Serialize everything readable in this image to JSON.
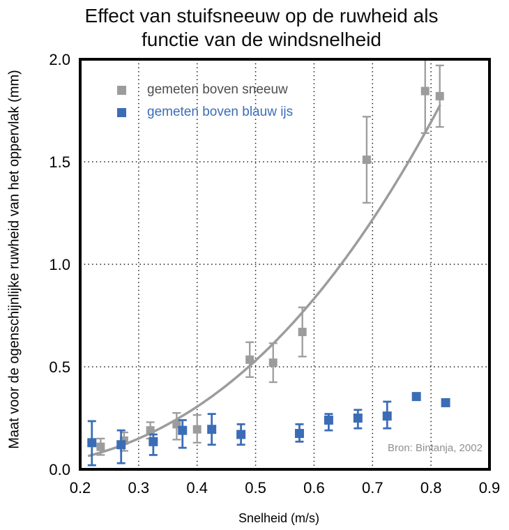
{
  "chart_data": {
    "type": "scatter",
    "title": "Effect van stuifsneeuw op de ruwheid als\nfunctie van de windsnelheid",
    "xlabel": "Snelheid (m/s)",
    "ylabel": "Maat voor de ogenschijnlijke  ruwheid van het oppervlak (mm)",
    "annotation": "Bron: Bintanja, 2002",
    "xlim": [
      0.2,
      0.9
    ],
    "ylim": [
      0.0,
      2.0
    ],
    "xticks": [
      "0.2",
      "0.3",
      "0.4",
      "0.5",
      "0.6",
      "0.7",
      "0.8",
      "0.9"
    ],
    "yticks": [
      "0.0",
      "0.5",
      "1.0",
      "1.5",
      "2.0"
    ],
    "xgrid": [
      0.3,
      0.4,
      0.5,
      0.6,
      0.7,
      0.8
    ],
    "ygrid": [
      0.5,
      1.0,
      1.5
    ],
    "grid_style": "dotted",
    "legend_position": "top-left-inside",
    "colors": {
      "snow": "#9c9c9c",
      "ice": "#3b6db6",
      "legend_snow_text": "#4d4d4d",
      "curve": "#9c9c9c",
      "annotation": "#8f8f8f",
      "frame": "#000000"
    },
    "fit": {
      "type": "power",
      "a": 2.94,
      "b": 2.47,
      "x_start": 0.215,
      "x_end": 0.817,
      "color": "#9c9c9c",
      "note": "y = a * x^b, gray fitted curve through snow data"
    },
    "series": [
      {
        "name": "gemeten boven sneeuw",
        "id": "snow",
        "color": "#9c9c9c",
        "marker": "square",
        "marker_size": 12,
        "bar_width": 2.3,
        "points_format": [
          "x (m/s)",
          "y (mm)",
          "err_low",
          "err_high"
        ],
        "points": [
          [
            0.235,
            0.11,
            0.07,
            0.15
          ],
          [
            0.275,
            0.14,
            0.09,
            0.18
          ],
          [
            0.32,
            0.19,
            0.15,
            0.23
          ],
          [
            0.365,
            0.22,
            0.145,
            0.275
          ],
          [
            0.4,
            0.195,
            0.13,
            0.265
          ],
          [
            0.49,
            0.535,
            0.45,
            0.62
          ],
          [
            0.53,
            0.52,
            0.425,
            0.615
          ],
          [
            0.58,
            0.67,
            0.55,
            0.79
          ],
          [
            0.69,
            1.51,
            1.3,
            1.72
          ],
          [
            0.79,
            1.845,
            1.64,
            2.0
          ],
          [
            0.815,
            1.82,
            1.67,
            1.97
          ]
        ]
      },
      {
        "name": "gemeten boven blauw ijs",
        "id": "ice",
        "color": "#3b6db6",
        "marker": "square",
        "marker_size": 13,
        "bar_width": 2.8,
        "points_format": [
          "x (m/s)",
          "y (mm)",
          "err_low",
          "err_high"
        ],
        "points": [
          [
            0.22,
            0.13,
            0.02,
            0.235
          ],
          [
            0.27,
            0.12,
            0.03,
            0.19
          ],
          [
            0.325,
            0.135,
            0.07,
            0.17
          ],
          [
            0.375,
            0.19,
            0.105,
            0.24
          ],
          [
            0.425,
            0.195,
            0.12,
            0.27
          ],
          [
            0.475,
            0.17,
            0.12,
            0.22
          ],
          [
            0.575,
            0.175,
            0.135,
            0.22
          ],
          [
            0.625,
            0.24,
            0.19,
            0.27
          ],
          [
            0.675,
            0.25,
            0.2,
            0.29
          ],
          [
            0.725,
            0.26,
            0.2,
            0.33
          ],
          [
            0.775,
            0.355,
            null,
            null
          ],
          [
            0.825,
            0.325,
            null,
            null
          ]
        ]
      }
    ]
  }
}
